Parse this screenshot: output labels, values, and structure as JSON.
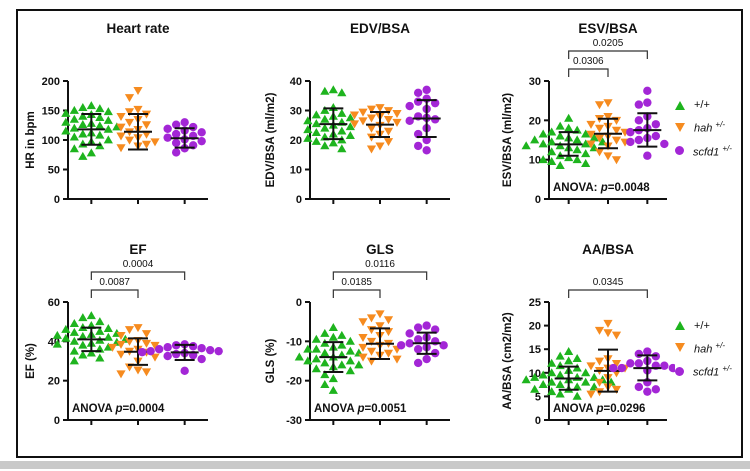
{
  "colors": {
    "green": "#1eb41e",
    "orange": "#f68b1f",
    "purple": "#a326d6",
    "axis": "#111111"
  },
  "legend": {
    "items": [
      {
        "marker": "triangle-up-icon",
        "color": "green",
        "label": "+/+",
        "sup": ""
      },
      {
        "marker": "triangle-down-icon",
        "color": "orange",
        "label": "hah",
        "sup": "+/-"
      },
      {
        "marker": "circle-icon",
        "color": "purple",
        "label": "scfd1",
        "sup": "+/-"
      }
    ]
  },
  "chart_data": [
    {
      "type": "scatter",
      "title": "Heart rate",
      "ylabel": "HR in bpm",
      "ylim": [
        0,
        200
      ],
      "yticks": [
        0,
        50,
        100,
        150,
        200
      ],
      "grid": false,
      "legend_position": "none",
      "comparisons": [],
      "anova": null,
      "groups": [
        {
          "name": "+/+",
          "marker": "triangle-up",
          "color": "green",
          "mean": 118,
          "sd_low": 92,
          "sd_high": 144,
          "values": [
            158,
            155,
            153,
            150,
            148,
            145,
            143,
            140,
            138,
            135,
            133,
            130,
            128,
            126,
            124,
            122,
            120,
            118,
            115,
            112,
            110,
            108,
            105,
            100,
            97,
            93,
            90,
            85,
            78,
            72
          ]
        },
        {
          "name": "hah +/-",
          "marker": "triangle-down",
          "color": "orange",
          "mean": 114,
          "sd_low": 84,
          "sd_high": 144,
          "values": [
            184,
            172,
            152,
            148,
            144,
            140,
            135,
            130,
            126,
            122,
            118,
            114,
            110,
            107,
            104,
            100,
            97,
            93,
            90,
            87
          ]
        },
        {
          "name": "scfd1 +/-",
          "marker": "circle",
          "color": "purple",
          "mean": 103,
          "sd_low": 87,
          "sd_high": 120,
          "values": [
            130,
            126,
            122,
            119,
            116,
            113,
            110,
            107,
            104,
            101,
            98,
            95,
            91,
            86,
            79
          ]
        }
      ]
    },
    {
      "type": "scatter",
      "title": "EDV/BSA",
      "ylabel": "EDV/BSA (ml/m2)",
      "ylim": [
        0,
        40
      ],
      "yticks": [
        0,
        10,
        20,
        30,
        40
      ],
      "grid": false,
      "legend_position": "none",
      "comparisons": [],
      "anova": null,
      "groups": [
        {
          "name": "+/+",
          "marker": "triangle-up",
          "color": "green",
          "mean": 25.4,
          "sd_low": 20.3,
          "sd_high": 30.7,
          "values": [
            37,
            36.5,
            36,
            31,
            30,
            29,
            28.5,
            28,
            27.5,
            27,
            26.5,
            26,
            25.5,
            25,
            24.5,
            24,
            23.5,
            23,
            22.5,
            22,
            21.5,
            21,
            20.5,
            20,
            19.5,
            19,
            18,
            17
          ]
        },
        {
          "name": "hah +/-",
          "marker": "triangle-down",
          "color": "orange",
          "mean": 25.2,
          "sd_low": 21,
          "sd_high": 29.5,
          "values": [
            31,
            30.5,
            30,
            29.5,
            29,
            28.5,
            28,
            27.5,
            27,
            26.5,
            26,
            25.5,
            25,
            24,
            23,
            22,
            21,
            19.5,
            18,
            17
          ]
        },
        {
          "name": "scfd1 +/-",
          "marker": "circle",
          "color": "purple",
          "mean": 27.3,
          "sd_low": 21,
          "sd_high": 33.5,
          "values": [
            37,
            36,
            34,
            33,
            32.5,
            31.5,
            30.5,
            28,
            27.5,
            27,
            26.5,
            24,
            22,
            20,
            18,
            16.5
          ]
        }
      ]
    },
    {
      "type": "scatter",
      "title": "ESV/BSA",
      "ylabel": "ESV/BSA (ml/m2)",
      "ylim": [
        0,
        30
      ],
      "yticks": [
        0,
        10,
        20,
        30
      ],
      "grid": false,
      "legend_position": "right",
      "comparisons": [
        {
          "from": 0,
          "to": 1,
          "p": "0.0306",
          "level": 1
        },
        {
          "from": 0,
          "to": 2,
          "p": "0.0205",
          "level": 2
        }
      ],
      "anova": {
        "label": "ANOVA:",
        "p": "0.0048"
      },
      "groups": [
        {
          "name": "+/+",
          "marker": "triangle-up",
          "color": "green",
          "mean": 13.9,
          "sd_low": 11,
          "sd_high": 17,
          "values": [
            20.5,
            18.5,
            18,
            17.5,
            17,
            16.5,
            16.5,
            16,
            15.5,
            15.5,
            15,
            15,
            14.5,
            14.5,
            14,
            14,
            13.5,
            13.5,
            13,
            13,
            12.5,
            12,
            11.5,
            11,
            10.5,
            10,
            10,
            9.5,
            9,
            8.5
          ]
        },
        {
          "name": "hah +/-",
          "marker": "triangle-down",
          "color": "orange",
          "mean": 16.6,
          "sd_low": 12.9,
          "sd_high": 20.4,
          "values": [
            24.5,
            24,
            21,
            20.5,
            20,
            19,
            18.5,
            18,
            17.5,
            17,
            16.5,
            16,
            15.5,
            15,
            14.5,
            14,
            13.5,
            12,
            11,
            10
          ]
        },
        {
          "name": "scfd1 +/-",
          "marker": "circle",
          "color": "purple",
          "mean": 17.5,
          "sd_low": 13.3,
          "sd_high": 21.8,
          "values": [
            27.5,
            24.5,
            24,
            21,
            20,
            19,
            18,
            17.5,
            17,
            16,
            15.5,
            15,
            14.5,
            14,
            11
          ]
        }
      ]
    },
    {
      "type": "scatter",
      "title": "EF",
      "ylabel": "EF (%)",
      "ylim": [
        0,
        60
      ],
      "yticks": [
        0,
        20,
        40,
        60
      ],
      "grid": false,
      "legend_position": "none",
      "comparisons": [
        {
          "from": 0,
          "to": 1,
          "p": "0.0087",
          "level": 1
        },
        {
          "from": 0,
          "to": 2,
          "p": "0.0004",
          "level": 2
        }
      ],
      "anova": {
        "label": "ANOVA",
        "p": "0.0004"
      },
      "groups": [
        {
          "name": "+/+",
          "marker": "triangle-up",
          "color": "green",
          "mean": 41,
          "sd_low": 35,
          "sd_high": 47,
          "values": [
            53,
            52,
            50,
            49,
            48,
            47,
            46.5,
            46,
            45,
            44.5,
            44,
            43.5,
            43,
            42.5,
            42,
            41.5,
            41,
            40.5,
            40,
            39.5,
            39,
            38.5,
            38,
            37,
            36,
            35,
            34,
            33,
            31.5,
            30
          ]
        },
        {
          "name": "hah +/-",
          "marker": "triangle-down",
          "color": "orange",
          "mean": 34.7,
          "sd_low": 28,
          "sd_high": 41.5,
          "values": [
            47,
            46,
            44,
            43,
            40.5,
            40,
            39,
            38.5,
            38,
            37,
            36,
            35,
            34.5,
            33.5,
            32,
            30,
            27,
            25.5,
            24.5,
            23.5
          ]
        },
        {
          "name": "scfd1 +/-",
          "marker": "circle",
          "color": "purple",
          "mean": 34.4,
          "sd_low": 30.5,
          "sd_high": 38.2,
          "values": [
            38.5,
            38,
            37.5,
            37,
            36.5,
            36,
            35.5,
            35,
            35,
            34.5,
            34,
            33.5,
            33,
            32.5,
            31,
            25
          ]
        }
      ]
    },
    {
      "type": "scatter",
      "title": "GLS",
      "ylabel": "GLS (%)",
      "ylim": [
        -30,
        0
      ],
      "yticks": [
        0,
        -10,
        -20,
        -30
      ],
      "grid": false,
      "legend_position": "none",
      "comparisons": [
        {
          "from": 0,
          "to": 1,
          "p": "0.0185",
          "level": 1
        },
        {
          "from": 0,
          "to": 2,
          "p": "0.0116",
          "level": 2
        }
      ],
      "anova": {
        "label": "ANOVA",
        "p": "0.0051"
      },
      "groups": [
        {
          "name": "+/+",
          "marker": "triangle-up",
          "color": "green",
          "mean": -14,
          "sd_low": -17.8,
          "sd_high": -10.2,
          "values": [
            -6.5,
            -8,
            -8.5,
            -9,
            -9.5,
            -10,
            -10.5,
            -11,
            -11.5,
            -12,
            -12,
            -12.5,
            -13,
            -13,
            -13.5,
            -14,
            -14,
            -14.5,
            -15,
            -15,
            -15.5,
            -16,
            -16,
            -16.5,
            -17,
            -17.5,
            -18.5,
            -19.5,
            -21,
            -22.5
          ]
        },
        {
          "name": "hah +/-",
          "marker": "triangle-down",
          "color": "orange",
          "mean": -10.6,
          "sd_low": -14.5,
          "sd_high": -6.7,
          "values": [
            -3,
            -4,
            -4.5,
            -5,
            -6,
            -7,
            -7.5,
            -8.5,
            -9,
            -10,
            -10.5,
            -11,
            -11.5,
            -12,
            -12.5,
            -13,
            -13.5,
            -14,
            -14.5,
            -15
          ]
        },
        {
          "name": "scfd1 +/-",
          "marker": "circle",
          "color": "purple",
          "mean": -10.5,
          "sd_low": -13.2,
          "sd_high": -7.8,
          "values": [
            -6,
            -6.5,
            -7,
            -8,
            -9,
            -9.5,
            -10,
            -10.5,
            -11,
            -11,
            -11.5,
            -12,
            -13,
            -14.5,
            -15.5
          ]
        }
      ]
    },
    {
      "type": "scatter",
      "title": "AA/BSA",
      "ylabel": "AA/BSA (cm2/m2)",
      "ylim": [
        0,
        25
      ],
      "yticks": [
        0,
        5,
        10,
        15,
        20,
        25
      ],
      "grid": false,
      "legend_position": "right",
      "comparisons": [
        {
          "from": 0,
          "to": 2,
          "p": "0.0345",
          "level": 1
        }
      ],
      "anova": {
        "label": "ANOVA",
        "p": "0.0296"
      },
      "groups": [
        {
          "name": "+/+",
          "marker": "triangle-up",
          "color": "green",
          "mean": 8.8,
          "sd_low": 6.4,
          "sd_high": 11.3,
          "values": [
            14.5,
            13.5,
            13,
            12.5,
            12,
            11.5,
            11,
            10.5,
            10,
            10,
            9.5,
            9.5,
            9,
            9,
            9,
            8.5,
            8.5,
            8.5,
            8,
            8,
            8,
            7.5,
            7.5,
            7,
            7,
            6.5,
            6.5,
            6,
            5.5,
            5
          ]
        },
        {
          "name": "hah +/-",
          "marker": "triangle-down",
          "color": "orange",
          "mean": 10.4,
          "sd_low": 6,
          "sd_high": 14.9,
          "values": [
            20.5,
            19,
            18.5,
            18,
            13,
            12.5,
            12,
            11.5,
            11,
            11,
            10.5,
            10,
            9,
            8,
            7,
            6.5,
            6,
            5.5
          ]
        },
        {
          "name": "scfd1 +/-",
          "marker": "circle",
          "color": "purple",
          "mean": 11,
          "sd_low": 8.4,
          "sd_high": 13.7,
          "values": [
            14.5,
            14,
            13.5,
            12.5,
            12,
            12,
            11.5,
            11.5,
            11,
            11,
            11,
            10.5,
            8,
            7,
            6.5,
            6
          ]
        }
      ]
    }
  ]
}
